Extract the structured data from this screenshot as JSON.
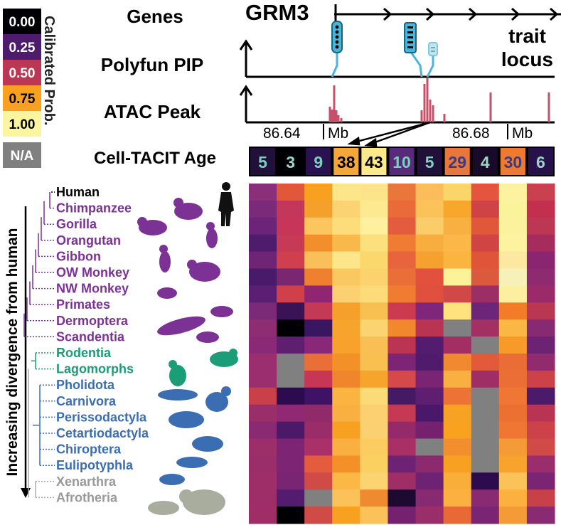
{
  "legend": {
    "title": "Calibrated Prob.",
    "stops": [
      {
        "label": "0.00",
        "color": "#000004",
        "text_color": "#ffffff"
      },
      {
        "label": "0.25",
        "color": "#4f1b6d",
        "text_color": "#ffffff"
      },
      {
        "label": "0.50",
        "color": "#bb3754",
        "text_color": "#ffffff"
      },
      {
        "label": "0.75",
        "color": "#f8a020",
        "text_color": "#000000"
      },
      {
        "label": "1.00",
        "color": "#fcf5a0",
        "text_color": "#000000"
      }
    ],
    "na": {
      "label": "N/A",
      "color": "#808080",
      "text_color": "#ffffff"
    }
  },
  "tracks": {
    "genes": "Genes",
    "polyfun": "Polyfun PIP",
    "atac": "ATAC Peak",
    "age": "Cell-TACIT Age"
  },
  "gene_name": "GRM3",
  "trait_locus": [
    "trait",
    "locus"
  ],
  "axis_ticks": [
    "86.64",
    "Mb",
    "86.68",
    "Mb"
  ],
  "y_axis_label": "Increasing divergence from human",
  "ages": [
    {
      "value": "5",
      "bg": "#20103a",
      "fg": "#7fcfbf"
    },
    {
      "value": "3",
      "bg": "#000004",
      "fg": "#9fd6c9"
    },
    {
      "value": "9",
      "bg": "#2a1250",
      "fg": "#7fcfbf"
    },
    {
      "value": "38",
      "bg": "#f6a73a",
      "fg": "#000000"
    },
    {
      "value": "43",
      "bg": "#fbe98a",
      "fg": "#000000"
    },
    {
      "value": "10",
      "bg": "#5a2a7a",
      "fg": "#7fcfbf"
    },
    {
      "value": "5",
      "bg": "#20103a",
      "fg": "#7fcfbf"
    },
    {
      "value": "29",
      "bg": "#e9763a",
      "fg": "#3a3a80"
    },
    {
      "value": "4",
      "bg": "#1a0a2a",
      "fg": "#9fd6c9"
    },
    {
      "value": "30",
      "bg": "#ee7a32",
      "fg": "#3a3a80"
    },
    {
      "value": "6",
      "bg": "#26114a",
      "fg": "#9fd6c9"
    }
  ],
  "species": [
    {
      "name": "Human",
      "color": "#000000"
    },
    {
      "name": "Chimpanzee",
      "color": "#7b3294"
    },
    {
      "name": "Gorilla",
      "color": "#7b3294"
    },
    {
      "name": "Orangutan",
      "color": "#7b3294"
    },
    {
      "name": "Gibbon",
      "color": "#7b3294"
    },
    {
      "name": "OW Monkey",
      "color": "#7b3294"
    },
    {
      "name": "NW Monkey",
      "color": "#7b3294"
    },
    {
      "name": "Primates",
      "color": "#7b3294"
    },
    {
      "name": "Dermoptera",
      "color": "#7b3294"
    },
    {
      "name": "Scandentia",
      "color": "#7b3294"
    },
    {
      "name": "Rodentia",
      "color": "#1b9e77"
    },
    {
      "name": "Lagomorphs",
      "color": "#1b9e77"
    },
    {
      "name": "Pholidota",
      "color": "#3b6db3"
    },
    {
      "name": "Carnivora",
      "color": "#3b6db3"
    },
    {
      "name": "Perissodactyla",
      "color": "#3b6db3"
    },
    {
      "name": "Cetartiodactyla",
      "color": "#3b6db3"
    },
    {
      "name": "Chiroptera",
      "color": "#3b6db3"
    },
    {
      "name": "Eulipotyphla",
      "color": "#3b6db3"
    },
    {
      "name": "Xenarthra",
      "color": "#999999"
    },
    {
      "name": "Afrotheria",
      "color": "#999999"
    }
  ],
  "heatmap": [
    [
      "#8a2f7a",
      "#e0573a",
      "#f8a020",
      "#fbe68a",
      "#fde48a",
      "#e9763a",
      "#fbbd5a",
      "#f9d56a",
      "#e5553e",
      "#fcf2a0",
      "#c9404f"
    ],
    [
      "#7a2a78",
      "#c4365a",
      "#f5a02a",
      "#fbd373",
      "#fde990",
      "#ea6a3a",
      "#fbc25a",
      "#f8a72c",
      "#cf4246",
      "#fbf29c",
      "#c2304e"
    ],
    [
      "#6b2478",
      "#c73658",
      "#fbc65e",
      "#fcdd7a",
      "#fef09e",
      "#e45c3e",
      "#fbcd6a",
      "#f8b040",
      "#e0573a",
      "#fcf29e",
      "#bb3754"
    ],
    [
      "#4f1b6d",
      "#c73a56",
      "#f38f2a",
      "#f8b94a",
      "#fde07e",
      "#ef7c32",
      "#f8ae3e",
      "#fbb848",
      "#d04544",
      "#fcf2a0",
      "#a62c5e"
    ],
    [
      "#6f2476",
      "#cf3f4e",
      "#fbbf5a",
      "#fde58a",
      "#fbd86e",
      "#e7643c",
      "#f6a030",
      "#fab540",
      "#e05538",
      "#fce8a0",
      "#8a2670"
    ],
    [
      "#4a1a6a",
      "#7a2670",
      "#f08030",
      "#f9c860",
      "#fbd26e",
      "#ea6e38",
      "#e3503e",
      "#fcf29a",
      "#db5a3e",
      "#f7f0b8",
      "#8e2a70"
    ],
    [
      "#5a1e72",
      "#d04048",
      "#902672",
      "#fad070",
      "#fcdb78",
      "#ef7c30",
      "#e0503e",
      "#d04848",
      "#9c2e66",
      "#fcf0a0",
      "#9a2a68"
    ],
    [
      "#7a2a76",
      "#3a1256",
      "#c43a56",
      "#f5a02a",
      "#f8c050",
      "#cc3a50",
      "#80267a",
      "#fde27e",
      "#6c2578",
      "#f37c28",
      "#ba3754"
    ],
    [
      "#8e2c74",
      "#000004",
      "#3a1560",
      "#f7a42c",
      "#fbd370",
      "#f2882e",
      "#b93452",
      "#808080",
      "#a23064",
      "#fbb644",
      "#882a72"
    ],
    [
      "#8a2a76",
      "#5e1f70",
      "#892878",
      "#f8a22c",
      "#fabf54",
      "#bb3452",
      "#541c6e",
      "#a32e64",
      "#808080",
      "#f79a2a",
      "#6c2374"
    ],
    [
      "#9a2e6e",
      "#808080",
      "#ea6e38",
      "#f39028",
      "#f9c050",
      "#7e2474",
      "#4f1b6d",
      "#f08a30",
      "#e25a3a",
      "#ea6c36",
      "#922a6e"
    ],
    [
      "#9a2e6e",
      "#808080",
      "#c83656",
      "#f0862c",
      "#f7a42c",
      "#d6494a",
      "#7c2474",
      "#f9b040",
      "#a02e66",
      "#ea6e36",
      "#cc4248"
    ],
    [
      "#c94049",
      "#2c0c4e",
      "#3e1264",
      "#fbb440",
      "#fbdb78",
      "#441a64",
      "#601e70",
      "#ec7236",
      "#808080",
      "#f07634",
      "#4c1a6a"
    ],
    [
      "#9a2e6a",
      "#902874",
      "#902a6a",
      "#f9b040",
      "#fcd070",
      "#c53a52",
      "#4a186a",
      "#f8a224",
      "#808080",
      "#ec7032",
      "#b93352"
    ],
    [
      "#8a2a72",
      "#4a1a68",
      "#9a2c6a",
      "#f8a020",
      "#fbd070",
      "#942a6a",
      "#762070",
      "#f8a220",
      "#808080",
      "#f07634",
      "#cc4248"
    ],
    [
      "#9c2e6a",
      "#7e2474",
      "#a93068",
      "#f9b040",
      "#fbcc60",
      "#a93066",
      "#808080",
      "#f38e2e",
      "#808080",
      "#f49a36",
      "#d04a48"
    ],
    [
      "#9a2e6a",
      "#7e2474",
      "#e45c3e",
      "#f39028",
      "#fbd060",
      "#6e2274",
      "#8c2a6e",
      "#f8a020",
      "#808080",
      "#f8a42c",
      "#9a2e6c"
    ],
    [
      "#9e2e68",
      "#7a2474",
      "#d04a48",
      "#fbb844",
      "#fbd370",
      "#a02e66",
      "#6e2274",
      "#f9ae3a",
      "#2c0c4e",
      "#fbc25a",
      "#7c2474"
    ],
    [
      "#9e2e68",
      "#541c6e",
      "#808080",
      "#fbc25a",
      "#f08a30",
      "#1c0a30",
      "#882a72",
      "#fbb040",
      "#8a2a72",
      "#fbb040",
      "#c84048"
    ],
    [
      "#a02e66",
      "#000004",
      "#d04a48",
      "#f8a020",
      "#fbc25a",
      "#762070",
      "#9a2e6a",
      "#e86836",
      "#7a2474",
      "#f49a36",
      "#8a2a72"
    ]
  ]
}
